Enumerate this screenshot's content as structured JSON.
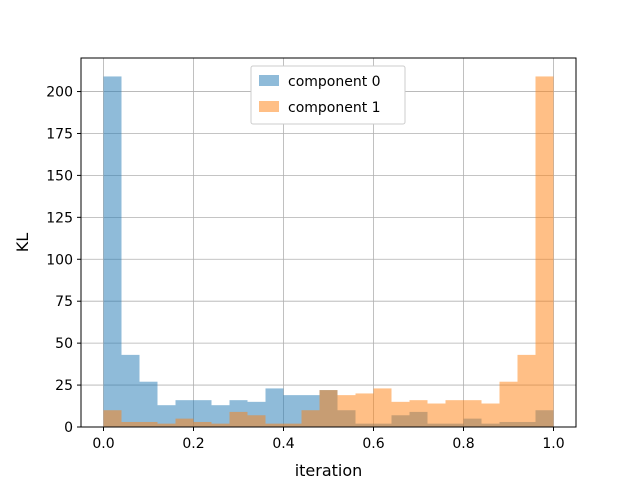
{
  "chart_data": {
    "type": "bar",
    "subtype": "overlapping-histogram",
    "xlabel": "iteration",
    "ylabel": "KL",
    "xlim": [
      -0.05,
      1.05
    ],
    "ylim": [
      0,
      220
    ],
    "xticks": [
      0.0,
      0.2,
      0.4,
      0.6,
      0.8,
      1.0
    ],
    "xtick_labels": [
      "0.0",
      "0.2",
      "0.4",
      "0.6",
      "0.8",
      "1.0"
    ],
    "yticks": [
      0,
      25,
      50,
      75,
      100,
      125,
      150,
      175,
      200
    ],
    "ytick_labels": [
      "0",
      "25",
      "50",
      "75",
      "100",
      "125",
      "150",
      "175",
      "200"
    ],
    "grid": true,
    "legend_position": "top-center",
    "bin_edges": [
      0.0,
      0.04,
      0.08,
      0.12,
      0.16,
      0.2,
      0.24,
      0.28,
      0.32,
      0.36,
      0.4,
      0.44,
      0.48,
      0.52,
      0.56,
      0.6,
      0.64,
      0.68,
      0.72,
      0.76,
      0.8,
      0.84,
      0.88,
      0.92,
      0.96,
      1.0
    ],
    "series": [
      {
        "name": "component 0",
        "color": "#1f77b4",
        "alpha": 0.5,
        "values": [
          209,
          43,
          27,
          13,
          16,
          16,
          13,
          16,
          15,
          23,
          19,
          19,
          22,
          10,
          2,
          2,
          7,
          9,
          2,
          2,
          5,
          2,
          3,
          3,
          10
        ]
      },
      {
        "name": "component 1",
        "color": "#ff7f0e",
        "alpha": 0.5,
        "values": [
          10,
          3,
          3,
          2,
          5,
          3,
          2,
          9,
          7,
          2,
          2,
          10,
          22,
          19,
          20,
          23,
          15,
          16,
          14,
          16,
          16,
          14,
          27,
          43,
          209
        ]
      }
    ]
  }
}
